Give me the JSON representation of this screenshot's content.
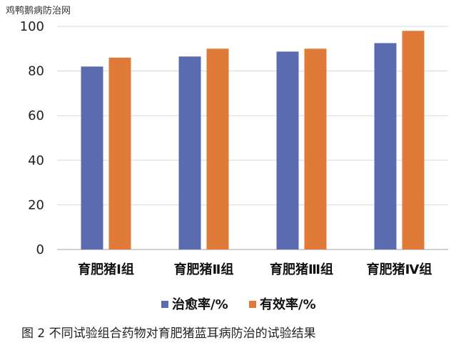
{
  "watermark": "鸡鸭鹅病防治网",
  "caption": "图 2 不同试验组合药物对育肥猪蓝耳病防治的试验结果",
  "colors": {
    "cure": "#5b6bb0",
    "effective": "#df7a38",
    "grid": "#d9d9d9",
    "axis": "#bfbfbf"
  },
  "chart_data": {
    "type": "bar",
    "title": "",
    "xlabel": "",
    "ylabel": "",
    "categories": [
      "育肥猪Ⅰ组",
      "育肥猪Ⅱ组",
      "育肥猪Ⅲ组",
      "育肥猪Ⅳ组"
    ],
    "series": [
      {
        "name": "治愈率/%",
        "values": [
          82,
          86.5,
          88.7,
          92.5
        ]
      },
      {
        "name": "有效率/%",
        "values": [
          86,
          90,
          90,
          98
        ]
      }
    ],
    "ylim": [
      0,
      100
    ],
    "yticks": [
      "0",
      "20",
      "40",
      "60",
      "80",
      "100"
    ],
    "grid": true,
    "legend": "bottom"
  }
}
